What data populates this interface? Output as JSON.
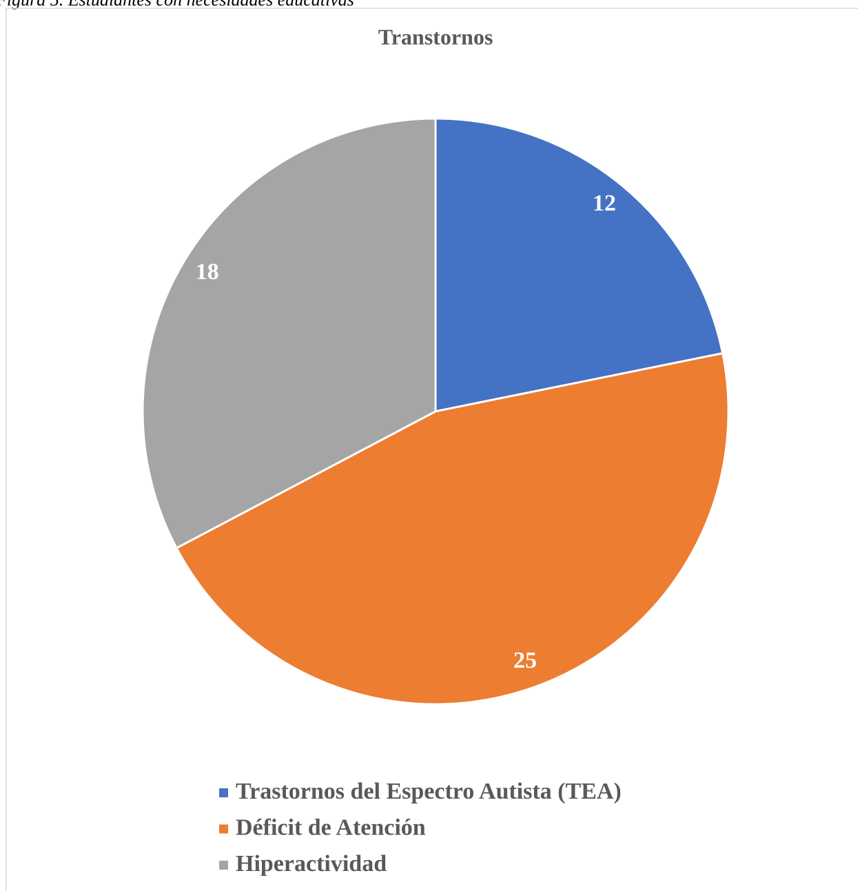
{
  "caption": "Figura 5. Estudiantes con necesidades educativas",
  "chart_data": {
    "type": "pie",
    "title": "Transtornos",
    "categories": [
      "Trastornos del Espectro Autista (TEA)",
      "Déficit de Atención",
      "Hiperactividad"
    ],
    "values": [
      12,
      25,
      18
    ],
    "colors": [
      "#4472c4",
      "#ed7d31",
      "#a5a5a5"
    ],
    "legend": "bottom"
  }
}
